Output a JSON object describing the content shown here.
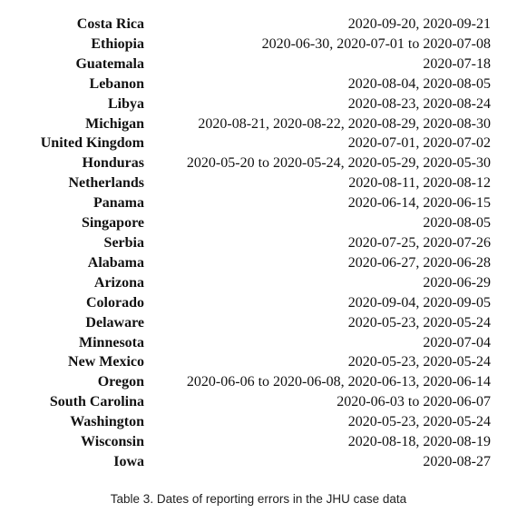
{
  "table": {
    "rows": [
      {
        "place": "Costa Rica",
        "dates": "2020-09-20, 2020-09-21"
      },
      {
        "place": "Ethiopia",
        "dates": "2020-06-30, 2020-07-01 to 2020-07-08"
      },
      {
        "place": "Guatemala",
        "dates": "2020-07-18"
      },
      {
        "place": "Lebanon",
        "dates": "2020-08-04, 2020-08-05"
      },
      {
        "place": "Libya",
        "dates": "2020-08-23, 2020-08-24"
      },
      {
        "place": "Michigan",
        "dates": "2020-08-21, 2020-08-22, 2020-08-29, 2020-08-30"
      },
      {
        "place": "United Kingdom",
        "dates": "2020-07-01, 2020-07-02"
      },
      {
        "place": "Honduras",
        "dates": "2020-05-20 to 2020-05-24, 2020-05-29, 2020-05-30"
      },
      {
        "place": "Netherlands",
        "dates": "2020-08-11, 2020-08-12"
      },
      {
        "place": "Panama",
        "dates": "2020-06-14, 2020-06-15"
      },
      {
        "place": "Singapore",
        "dates": "2020-08-05"
      },
      {
        "place": "Serbia",
        "dates": "2020-07-25, 2020-07-26"
      },
      {
        "place": "Alabama",
        "dates": "2020-06-27, 2020-06-28"
      },
      {
        "place": "Arizona",
        "dates": "2020-06-29"
      },
      {
        "place": "Colorado",
        "dates": "2020-09-04, 2020-09-05"
      },
      {
        "place": "Delaware",
        "dates": "2020-05-23, 2020-05-24"
      },
      {
        "place": "Minnesota",
        "dates": "2020-07-04"
      },
      {
        "place": "New Mexico",
        "dates": "2020-05-23, 2020-05-24"
      },
      {
        "place": "Oregon",
        "dates": "2020-06-06 to 2020-06-08, 2020-06-13, 2020-06-14"
      },
      {
        "place": "South Carolina",
        "dates": "2020-06-03 to 2020-06-07"
      },
      {
        "place": "Washington",
        "dates": "2020-05-23, 2020-05-24"
      },
      {
        "place": "Wisconsin",
        "dates": "2020-08-18, 2020-08-19"
      },
      {
        "place": "Iowa",
        "dates": "2020-08-27"
      }
    ]
  },
  "caption": "Table 3.  Dates of reporting errors in the JHU case data"
}
